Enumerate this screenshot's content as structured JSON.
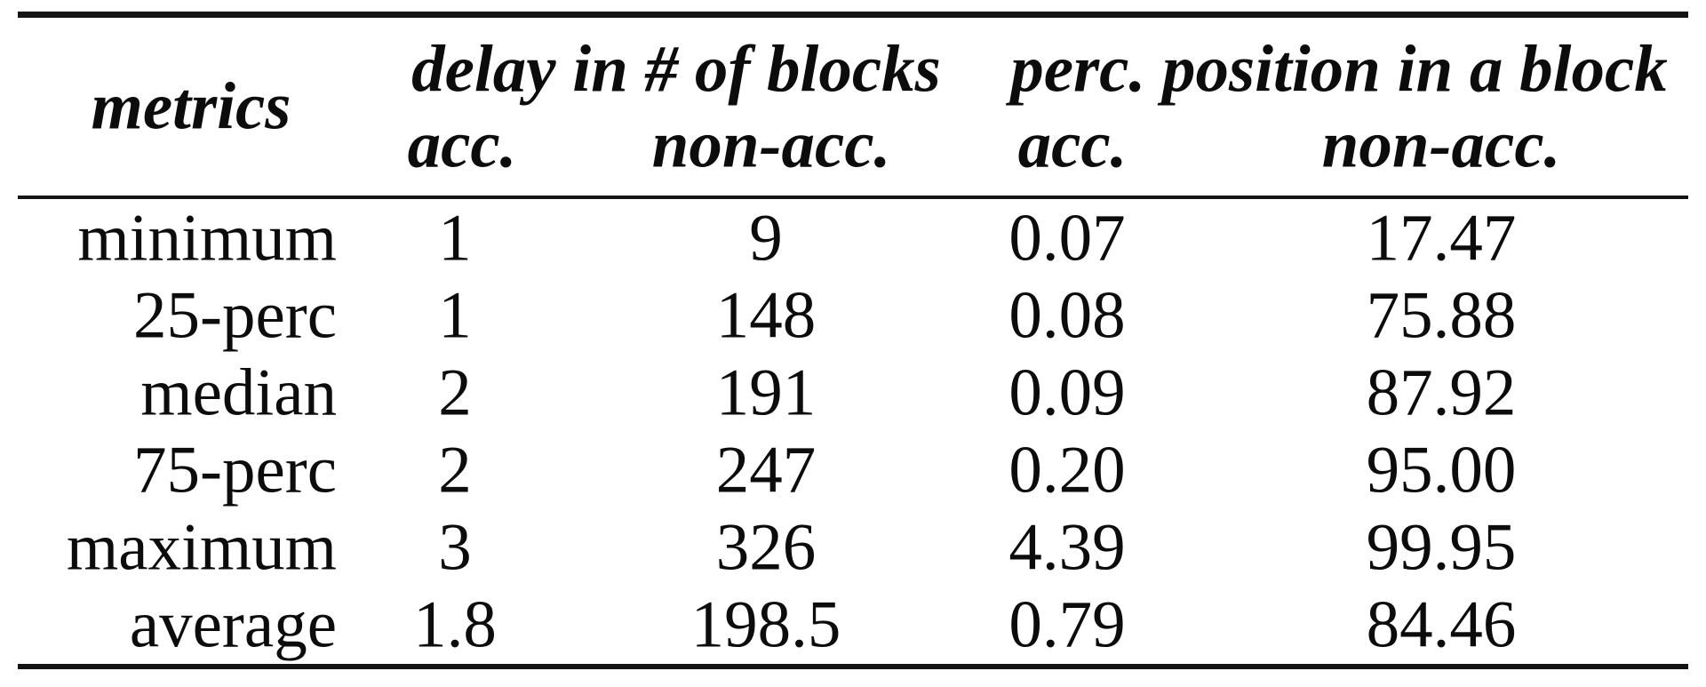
{
  "table": {
    "header": {
      "metrics_label": "metrics",
      "groups": [
        {
          "label": "delay in # of blocks"
        },
        {
          "label": "perc. position in a block"
        }
      ],
      "subheaders": {
        "acc": "acc.",
        "non_acc": "non-acc."
      }
    },
    "rows": [
      {
        "metric": "minimum",
        "delay_acc": "1",
        "delay_non_acc": "9",
        "perc_acc": "0.07",
        "perc_non_acc": "17.47"
      },
      {
        "metric": "25-perc",
        "delay_acc": "1",
        "delay_non_acc": "148",
        "perc_acc": "0.08",
        "perc_non_acc": "75.88"
      },
      {
        "metric": "median",
        "delay_acc": "2",
        "delay_non_acc": "191",
        "perc_acc": "0.09",
        "perc_non_acc": "87.92"
      },
      {
        "metric": "75-perc",
        "delay_acc": "2",
        "delay_non_acc": "247",
        "perc_acc": "0.20",
        "perc_non_acc": "95.00"
      },
      {
        "metric": "maximum",
        "delay_acc": "3",
        "delay_non_acc": "326",
        "perc_acc": "4.39",
        "perc_non_acc": "99.95"
      },
      {
        "metric": "average",
        "delay_acc": "1.8",
        "delay_non_acc": "198.5",
        "perc_acc": "0.79",
        "perc_non_acc": "84.46"
      }
    ],
    "colors": {
      "text": "#0c0c0c",
      "rule": "#141414",
      "background": "#ffffff"
    }
  },
  "chart_data": {
    "type": "table",
    "columns": [
      "metrics",
      "delay in # of blocks / acc.",
      "delay in # of blocks / non-acc.",
      "perc. position in a block / acc.",
      "perc. position in a block / non-acc."
    ],
    "rows": [
      [
        "minimum",
        1,
        9,
        0.07,
        17.47
      ],
      [
        "25-perc",
        1,
        148,
        0.08,
        75.88
      ],
      [
        "median",
        2,
        191,
        0.09,
        87.92
      ],
      [
        "75-perc",
        2,
        247,
        0.2,
        95.0
      ],
      [
        "maximum",
        3,
        326,
        4.39,
        99.95
      ],
      [
        "average",
        1.8,
        198.5,
        0.79,
        84.46
      ]
    ]
  }
}
